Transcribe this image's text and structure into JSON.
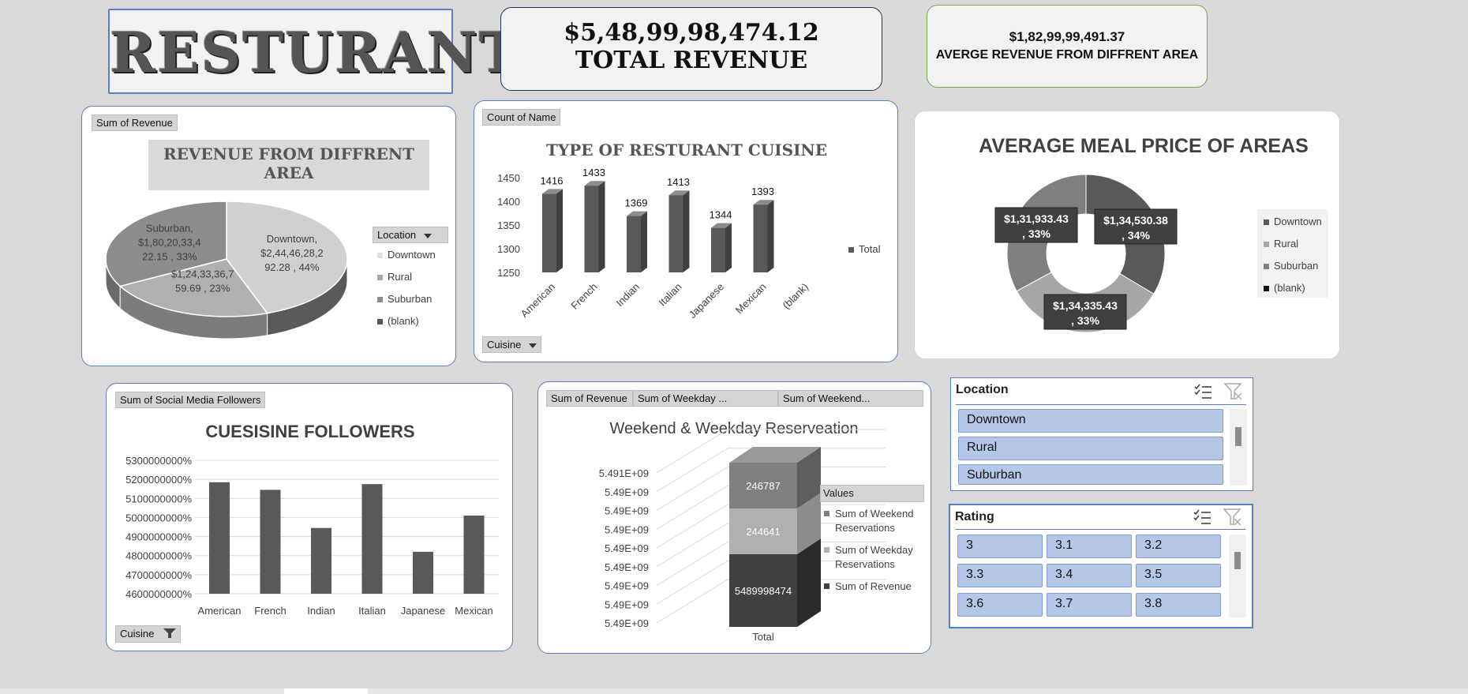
{
  "title": "RESTURANT",
  "kpi_total": {
    "value": "$5,48,99,98,474.12",
    "label": "TOTAL REVENUE"
  },
  "kpi_avg": {
    "value": "$1,82,99,99,491.37",
    "label": "AVERGE REVENUE FROM DIFFRENT AREA"
  },
  "colors": {
    "panel_border": "#5b7fbf",
    "slicer_button": "#b4c7e7",
    "background": "#d9d9d9"
  },
  "pie_panel": {
    "field_tag": "Sum of Revenue",
    "legend_title": "Location",
    "legend": [
      "Downtown",
      "Rural",
      "Suburban",
      "(blank)"
    ]
  },
  "bar_panel": {
    "field_tag": "Count of Name",
    "axis_tag": "Cuisine",
    "legend": [
      "Total"
    ]
  },
  "donut_panel": {
    "legend": [
      "Downtown",
      "Rural",
      "Suburban",
      "(blank)"
    ]
  },
  "followers_panel": {
    "field_tag": "Sum of Social Media Followers",
    "axis_tag": "Cuisine"
  },
  "stack_panel": {
    "tags": [
      "Sum of Revenue",
      "Sum of Weekday ...",
      "Sum of Weekend..."
    ],
    "legend_title": "Values",
    "legend": [
      "Sum of Weekend Reservations",
      "Sum of Weekday Reservations",
      "Sum of Revenue"
    ]
  },
  "slicer_location": {
    "title": "Location",
    "items": [
      "Downtown",
      "Rural",
      "Suburban"
    ]
  },
  "slicer_rating": {
    "title": "Rating",
    "items": [
      "3",
      "3.1",
      "3.2",
      "3.3",
      "3.4",
      "3.5",
      "3.6",
      "3.7",
      "3.8"
    ]
  },
  "chart_data": [
    {
      "type": "pie",
      "title": "REVENUE FROM DIFFRENT AREA",
      "categories": [
        "Downtown",
        "Rural",
        "Suburban"
      ],
      "values": [
        2444628292.28,
        1243336759.69,
        1802033422.15
      ],
      "labels": [
        "Downtown,\n$2,44,46,28,2\n92.28 , 44%",
        "$1,24,33,36,7\n59.69 , 23%",
        "Suburban,\n$1,80,20,33,4\n22.15 , 33%"
      ],
      "percent": [
        44,
        23,
        33
      ]
    },
    {
      "type": "bar",
      "title": "TYPE OF RESTURANT CUISINE",
      "categories": [
        "American",
        "French",
        "Indian",
        "Italian",
        "Japanese",
        "Mexican",
        "(blank)"
      ],
      "values": [
        1416,
        1433,
        1369,
        1413,
        1344,
        1393,
        null
      ],
      "series": [
        {
          "name": "Total",
          "values": [
            1416,
            1433,
            1369,
            1413,
            1344,
            1393,
            null
          ]
        }
      ],
      "yticks": [
        "1250",
        "1300",
        "1350",
        "1400",
        "1450"
      ],
      "ylim": [
        1250,
        1450
      ],
      "grid": false,
      "legend": "right"
    },
    {
      "type": "pie",
      "title": "AVERAGE MEAL PRICE OF AREAS",
      "categories": [
        "Downtown",
        "Rural",
        "Suburban"
      ],
      "values": [
        134530.38,
        134335.43,
        131933.43
      ],
      "labels": [
        "$1,34,530.38\n, 34%",
        "$1,34,335.43\n, 33%",
        "$1,31,933.43\n, 33%"
      ],
      "percent": [
        34,
        33,
        33
      ],
      "legend": "right"
    },
    {
      "type": "bar",
      "title": "CUESISINE FOLLOWERS",
      "categories": [
        "American",
        "French",
        "Indian",
        "Italian",
        "Japanese",
        "Mexican"
      ],
      "values": [
        5185000000,
        5145000000,
        4945000000,
        5175000000,
        4820000000,
        5010000000
      ],
      "yticks": [
        "4600000000%",
        "4700000000%",
        "4800000000%",
        "4900000000%",
        "5000000000%",
        "5100000000%",
        "5200000000%",
        "5300000000%"
      ],
      "ylim": [
        4600000000,
        5300000000
      ],
      "grid": true
    },
    {
      "type": "bar",
      "title": "Weekend & Weekday Reserveation",
      "categories": [
        "Total"
      ],
      "series": [
        {
          "name": "Sum of Revenue",
          "values": [
            5489998474
          ]
        },
        {
          "name": "Sum of Weekday Reservations",
          "values": [
            244641
          ]
        },
        {
          "name": "Sum of Weekend Reservations",
          "values": [
            246787
          ]
        }
      ],
      "yticks": [
        "5.49E+09",
        "5.49E+09",
        "5.49E+09",
        "5.49E+09",
        "5.49E+09",
        "5.49E+09",
        "5.49E+09",
        "5.49E+09",
        "5.491E+09"
      ],
      "legend": "right"
    }
  ]
}
